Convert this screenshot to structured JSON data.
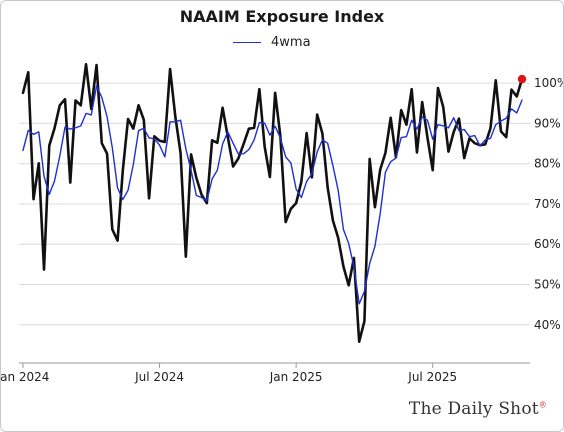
{
  "chart_data": {
    "type": "line",
    "title": "NAAIM Exposure Index",
    "xlabel": "",
    "ylabel": "",
    "ylim": [
      32,
      106
    ],
    "yticks": [
      40,
      50,
      60,
      70,
      80,
      90,
      100
    ],
    "yticklabels": [
      "40%",
      "50%",
      "60%",
      "70%",
      "80%",
      "90%",
      "100%"
    ],
    "xticks": [
      "Jan 2024",
      "Jul 2024",
      "Jan 2025",
      "Jul 2025"
    ],
    "grid": true,
    "legend_position": "top-center",
    "colors": {
      "index": "#111111",
      "ma": "#1f2fd0",
      "last_point": "#e01414",
      "grid": "#dcdcdc"
    },
    "series": [
      {
        "name": "",
        "values": [
          97.6,
          102.7,
          71.2,
          80.1,
          53.7,
          84.5,
          88.8,
          94.5,
          96,
          75.3,
          95.7,
          94.5,
          104.7,
          93.6,
          104.5,
          85.1,
          82.5,
          63.7,
          60.9,
          78.3,
          91.1,
          88.7,
          94.5,
          90.9,
          71.4,
          86.8,
          85.7,
          85.4,
          103.5,
          91.7,
          82.6,
          56.9,
          82.3,
          76.5,
          72.3,
          70.2,
          85.8,
          85.2,
          93.9,
          86.6,
          79.3,
          81.3,
          84.9,
          88.7,
          88.9,
          98.5,
          84.3,
          76.7,
          97.6,
          86.8,
          65.5,
          68.8,
          70.2,
          75.6,
          87.6,
          76.6,
          92.2,
          87.5,
          74.1,
          65.9,
          61.6,
          54.5,
          49.8,
          56.6,
          35.8,
          40.9,
          81.2,
          69.2,
          78.5,
          82.7,
          91.4,
          81.6,
          93.3,
          89.7,
          98.5,
          82.8,
          95.3,
          86.5,
          78.4,
          98.8,
          94.1,
          83,
          87.9,
          91.2,
          81.4,
          86.3,
          85.1,
          84.6,
          84.8,
          88.8,
          100.7,
          88,
          86.6,
          98.4,
          96.7,
          101
        ]
      },
      {
        "name": "4wma",
        "values": [
          83.3,
          88.3,
          87.3,
          87.9,
          76.9,
          72.4,
          75.7,
          81.9,
          89.1,
          88.6,
          88.9,
          89.4,
          92.5,
          92.1,
          99.3,
          96.5,
          91.7,
          84,
          74,
          71.1,
          73.4,
          79.8,
          88.2,
          88.8,
          86.4,
          86.2,
          84.6,
          81.7,
          90.4,
          90.4,
          90.8,
          83.7,
          78.4,
          72.1,
          71.6,
          70.8,
          76.2,
          78.4,
          84.9,
          87.9,
          85.1,
          82.4,
          82.5,
          83.5,
          85.9,
          90.2,
          90.1,
          87.1,
          89.3,
          86.4,
          81.7,
          80.2,
          73.7,
          71.6,
          75.6,
          77.5,
          82.9,
          85.9,
          85.1,
          79.5,
          73.4,
          63.7,
          60.2,
          54.4,
          45.2,
          48.3,
          55.2,
          59.5,
          67.6,
          77.9,
          80.5,
          81.4,
          86.5,
          86.7,
          90.8,
          88.6,
          91.6,
          90.8,
          86.1,
          89.7,
          89.4,
          88.9,
          91.4,
          88.2,
          88.5,
          86.7,
          87,
          84.4,
          85.9,
          86.3,
          89.7,
          90.6,
          91.3,
          93.6,
          92.6,
          95.8
        ]
      }
    ]
  },
  "footer": {
    "brand_main": "The Daily Shot",
    "brand_mark": "®"
  }
}
